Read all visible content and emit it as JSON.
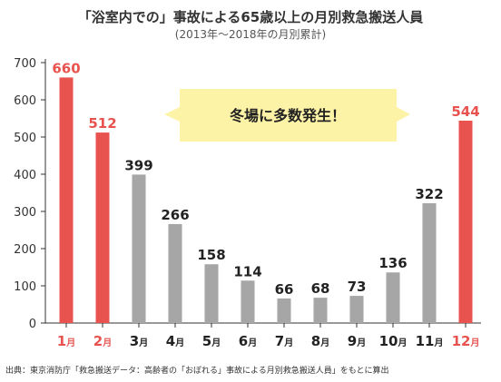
{
  "title": "「浴室内での」事故による65歳以上の月別救急搬送人員",
  "subtitle": "(2013年～2018年の月別累計)",
  "source": "出典：東京消防庁「救急搬送データ：高齢者の「おぼれる」事故による月別救急搬送人員」をもとに算出",
  "callout": "冬場に多数発生！",
  "colors": {
    "highlight": "#e8534f",
    "normal": "#a6a6a6",
    "banner": "#fdf3a7",
    "axis": "#333333"
  },
  "chart_data": {
    "type": "bar",
    "categories": [
      "1",
      "2",
      "3",
      "4",
      "5",
      "6",
      "7",
      "8",
      "9",
      "10",
      "11",
      "12"
    ],
    "category_suffix": "月",
    "values": [
      660,
      512,
      399,
      266,
      158,
      114,
      66,
      68,
      73,
      136,
      322,
      544
    ],
    "highlighted_categories": [
      "1",
      "2",
      "12"
    ],
    "ylim": [
      0,
      700
    ],
    "yticks": [
      0,
      100,
      200,
      300,
      400,
      500,
      600,
      700
    ],
    "grid": false,
    "legend": "none"
  }
}
